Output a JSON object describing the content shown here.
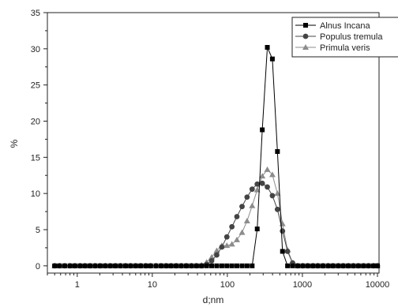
{
  "chart_data": {
    "type": "scatter",
    "title": "",
    "xlabel": "d;nm",
    "ylabel": "%",
    "x_scale": "log",
    "xlim": [
      0.4,
      10500
    ],
    "ylim": [
      -1,
      35
    ],
    "x_ticks": [
      1,
      10,
      100,
      1000,
      10000
    ],
    "x_tick_labels": [
      "1",
      "10",
      "100",
      "1000",
      "10000"
    ],
    "y_ticks": [
      0,
      5,
      10,
      15,
      20,
      25,
      30,
      35
    ],
    "y_tick_labels": [
      "0",
      "5",
      "10",
      "15",
      "20",
      "25",
      "30",
      "35"
    ],
    "grid": false,
    "legend_position": "top-right",
    "series": [
      {
        "name": "Alnus Incana",
        "marker": "square",
        "color": "#000000",
        "points": [
          [
            0.5,
            0
          ],
          [
            0.58,
            0
          ],
          [
            0.68,
            0
          ],
          [
            0.8,
            0
          ],
          [
            0.93,
            0
          ],
          [
            1.09,
            0
          ],
          [
            1.27,
            0
          ],
          [
            1.48,
            0
          ],
          [
            1.73,
            0
          ],
          [
            2.02,
            0
          ],
          [
            2.36,
            0
          ],
          [
            2.76,
            0
          ],
          [
            3.22,
            0
          ],
          [
            3.76,
            0
          ],
          [
            4.4,
            0
          ],
          [
            5.13,
            0
          ],
          [
            6.0,
            0
          ],
          [
            7.0,
            0
          ],
          [
            8.2,
            0
          ],
          [
            9.5,
            0
          ],
          [
            11.2,
            0
          ],
          [
            13.1,
            0
          ],
          [
            15.3,
            0
          ],
          [
            17.8,
            0
          ],
          [
            20.8,
            0
          ],
          [
            24.3,
            0
          ],
          [
            28.4,
            0
          ],
          [
            33.2,
            0
          ],
          [
            38.8,
            0
          ],
          [
            45.3,
            0
          ],
          [
            52.9,
            0
          ],
          [
            61.8,
            0
          ],
          [
            72.2,
            0
          ],
          [
            84.4,
            0
          ],
          [
            98.5,
            0
          ],
          [
            115,
            0
          ],
          [
            134,
            0
          ],
          [
            157,
            0
          ],
          [
            183,
            0
          ],
          [
            214,
            0
          ],
          [
            250,
            5.1
          ],
          [
            292,
            18.8
          ],
          [
            341,
            30.2
          ],
          [
            398,
            28.6
          ],
          [
            465,
            15.8
          ],
          [
            543,
            2.0
          ],
          [
            634,
            0
          ],
          [
            740,
            0
          ],
          [
            865,
            0
          ],
          [
            1010,
            0
          ],
          [
            1180,
            0
          ],
          [
            1380,
            0
          ],
          [
            1610,
            0
          ],
          [
            1880,
            0
          ],
          [
            2200,
            0
          ],
          [
            2560,
            0
          ],
          [
            3000,
            0
          ],
          [
            3500,
            0
          ],
          [
            4090,
            0
          ],
          [
            4770,
            0
          ],
          [
            5570,
            0
          ],
          [
            6510,
            0
          ],
          [
            7600,
            0
          ],
          [
            8870,
            0
          ],
          [
            10000,
            0
          ]
        ]
      },
      {
        "name": "Populus tremula",
        "marker": "circle",
        "color": "#444444",
        "points": [
          [
            0.5,
            0
          ],
          [
            0.58,
            0
          ],
          [
            0.68,
            0
          ],
          [
            0.8,
            0
          ],
          [
            0.93,
            0
          ],
          [
            1.09,
            0
          ],
          [
            1.27,
            0
          ],
          [
            1.48,
            0
          ],
          [
            1.73,
            0
          ],
          [
            2.02,
            0
          ],
          [
            2.36,
            0
          ],
          [
            2.76,
            0
          ],
          [
            3.22,
            0
          ],
          [
            3.76,
            0
          ],
          [
            4.4,
            0
          ],
          [
            5.13,
            0
          ],
          [
            6.0,
            0
          ],
          [
            7.0,
            0
          ],
          [
            8.2,
            0
          ],
          [
            9.5,
            0
          ],
          [
            11.2,
            0
          ],
          [
            13.1,
            0
          ],
          [
            15.3,
            0
          ],
          [
            17.8,
            0
          ],
          [
            20.8,
            0
          ],
          [
            24.3,
            0
          ],
          [
            28.4,
            0
          ],
          [
            33.2,
            0
          ],
          [
            38.8,
            0
          ],
          [
            45.3,
            0
          ],
          [
            52.9,
            0.2
          ],
          [
            61.8,
            0.7
          ],
          [
            72.2,
            1.5
          ],
          [
            84.4,
            2.6
          ],
          [
            98.5,
            4.0
          ],
          [
            115,
            5.4
          ],
          [
            134,
            6.8
          ],
          [
            157,
            8.2
          ],
          [
            183,
            9.5
          ],
          [
            214,
            10.6
          ],
          [
            250,
            11.3
          ],
          [
            292,
            11.4
          ],
          [
            341,
            10.9
          ],
          [
            398,
            9.7
          ],
          [
            465,
            7.8
          ],
          [
            543,
            4.8
          ],
          [
            634,
            2.0
          ],
          [
            740,
            0.4
          ],
          [
            865,
            0
          ],
          [
            1010,
            0
          ],
          [
            1180,
            0
          ],
          [
            1380,
            0
          ],
          [
            1610,
            0
          ],
          [
            1880,
            0
          ],
          [
            2200,
            0
          ],
          [
            2560,
            0
          ],
          [
            3000,
            0
          ],
          [
            3500,
            0
          ],
          [
            4090,
            0
          ],
          [
            4770,
            0
          ],
          [
            5570,
            0
          ],
          [
            6510,
            0
          ],
          [
            7600,
            0
          ],
          [
            8870,
            0
          ],
          [
            10000,
            0
          ]
        ]
      },
      {
        "name": "Primula veris",
        "marker": "triangle",
        "color": "#8c8c8c",
        "points": [
          [
            0.5,
            0
          ],
          [
            0.58,
            0
          ],
          [
            0.68,
            0
          ],
          [
            0.8,
            0
          ],
          [
            0.93,
            0
          ],
          [
            1.09,
            0
          ],
          [
            1.27,
            0
          ],
          [
            1.48,
            0
          ],
          [
            1.73,
            0
          ],
          [
            2.02,
            0
          ],
          [
            2.36,
            0
          ],
          [
            2.76,
            0
          ],
          [
            3.22,
            0
          ],
          [
            3.76,
            0
          ],
          [
            4.4,
            0
          ],
          [
            5.13,
            0
          ],
          [
            6.0,
            0
          ],
          [
            7.0,
            0
          ],
          [
            8.2,
            0
          ],
          [
            9.5,
            0
          ],
          [
            11.2,
            0
          ],
          [
            13.1,
            0
          ],
          [
            15.3,
            0
          ],
          [
            17.8,
            0
          ],
          [
            20.8,
            0
          ],
          [
            24.3,
            0
          ],
          [
            28.4,
            0
          ],
          [
            33.2,
            0
          ],
          [
            38.8,
            0
          ],
          [
            45.3,
            0.1
          ],
          [
            52.9,
            0.5
          ],
          [
            61.8,
            1.2
          ],
          [
            72.2,
            2.1
          ],
          [
            84.4,
            2.8
          ],
          [
            98.5,
            2.8
          ],
          [
            115,
            3.0
          ],
          [
            134,
            3.6
          ],
          [
            157,
            4.6
          ],
          [
            183,
            6.2
          ],
          [
            214,
            8.3
          ],
          [
            250,
            10.5
          ],
          [
            292,
            12.4
          ],
          [
            341,
            13.3
          ],
          [
            398,
            12.6
          ],
          [
            465,
            10.0
          ],
          [
            543,
            5.8
          ],
          [
            634,
            2.2
          ],
          [
            740,
            0.4
          ],
          [
            865,
            0
          ],
          [
            1010,
            0
          ],
          [
            1180,
            0
          ],
          [
            1380,
            0
          ],
          [
            1610,
            0
          ],
          [
            1880,
            0
          ],
          [
            2200,
            0
          ],
          [
            2560,
            0
          ],
          [
            3000,
            0
          ],
          [
            3500,
            0
          ],
          [
            4090,
            0
          ],
          [
            4770,
            0
          ],
          [
            5570,
            0
          ],
          [
            6510,
            0
          ],
          [
            7600,
            0
          ],
          [
            8870,
            0
          ],
          [
            10000,
            0
          ]
        ]
      }
    ]
  }
}
